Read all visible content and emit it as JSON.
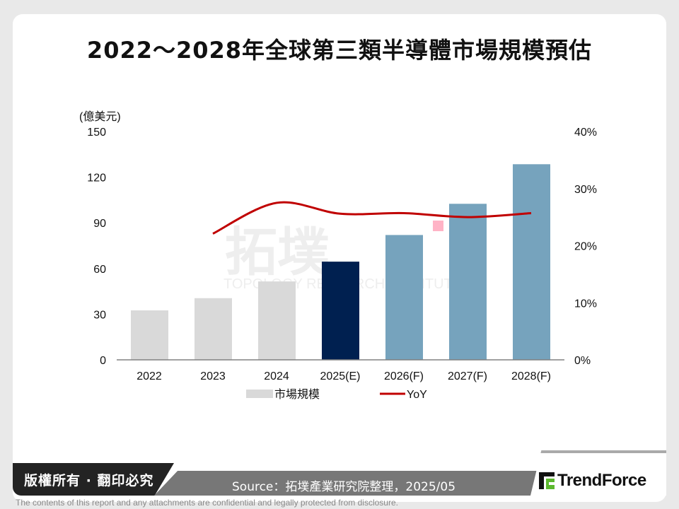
{
  "title": "2022～2028年全球第三類半導體市場規模預估",
  "chart_data": {
    "type": "bar+line",
    "title": "2022～2028年全球第三類半導體市場規模預估",
    "categories": [
      "2022",
      "2023",
      "2024",
      "2025(E)",
      "2026(F)",
      "2027(F)",
      "2028(F)"
    ],
    "y_left": {
      "label": "(億美元)",
      "ylim": [
        0,
        150
      ],
      "ticks": [
        "0",
        "30",
        "60",
        "90",
        "120",
        "150"
      ]
    },
    "y_right": {
      "ylim": [
        0,
        40
      ],
      "ticks": [
        "0%",
        "10%",
        "20%",
        "30%",
        "40%"
      ]
    },
    "grid": false,
    "legend": "bottom",
    "series": [
      {
        "name": "市場規模",
        "type": "bar",
        "axis": "left",
        "values": [
          32.5,
          40.5,
          51.5,
          64.5,
          82,
          102.5,
          128.5
        ],
        "colors": [
          "#d9d9d9",
          "#d9d9d9",
          "#d9d9d9",
          "#002050",
          "#76a3bd",
          "#76a3bd",
          "#76a3bd"
        ]
      },
      {
        "name": "YoY",
        "type": "line",
        "axis": "right",
        "smooth": true,
        "color": "#c00000",
        "values": [
          null,
          22.1,
          27.5,
          25.6,
          25.7,
          25.0,
          25.7
        ]
      }
    ]
  },
  "watermark": {
    "cn": "拓墣",
    "en": "TOPOLOGY RESEARCH INSTITUTE"
  },
  "footer": {
    "copyright": "版權所有 · 翻印必究",
    "source": "Source：拓墣產業研究院整理，2025/05",
    "logo": "TrendForce",
    "disclaimer": "The contents of this report and any attachments are confidential and legally protected from disclosure."
  }
}
